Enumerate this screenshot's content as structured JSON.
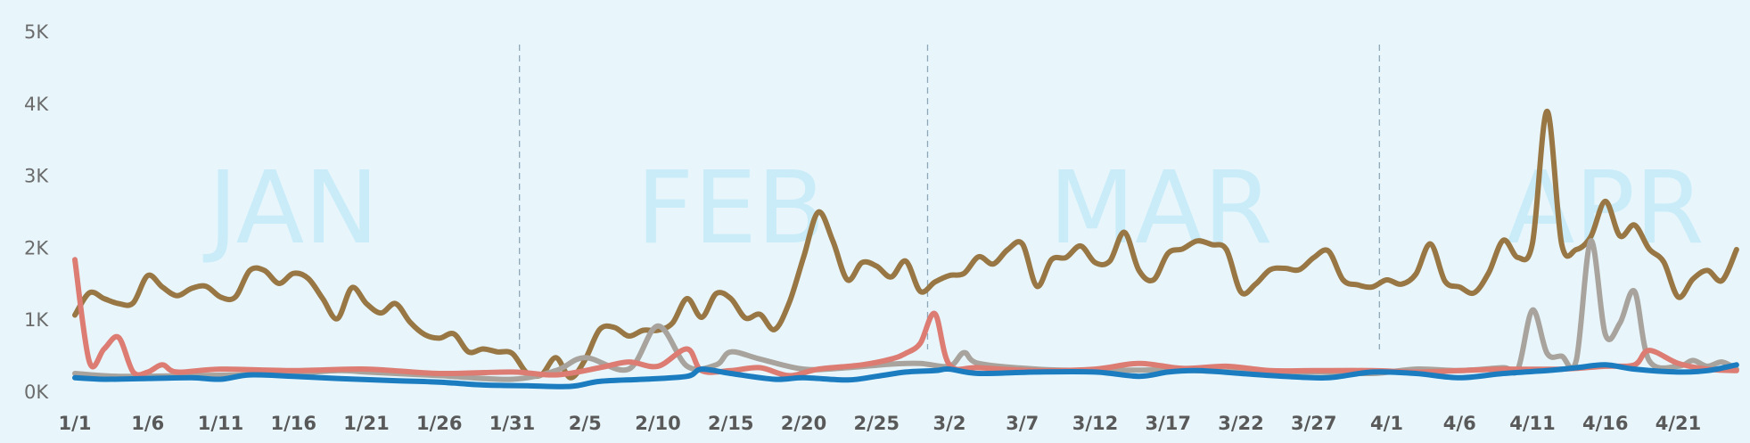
{
  "chart_data": {
    "type": "line",
    "ylim": [
      0,
      5000
    ],
    "y_ticks": [
      {
        "value": 0,
        "label": "0K"
      },
      {
        "value": 1000,
        "label": "1K"
      },
      {
        "value": 2000,
        "label": "2K"
      },
      {
        "value": 3000,
        "label": "3K"
      },
      {
        "value": 4000,
        "label": "4K"
      },
      {
        "value": 5000,
        "label": "5K"
      }
    ],
    "x_ticks": [
      {
        "index": 0,
        "label": "1/1"
      },
      {
        "index": 5,
        "label": "1/6"
      },
      {
        "index": 10,
        "label": "1/11"
      },
      {
        "index": 15,
        "label": "1/16"
      },
      {
        "index": 20,
        "label": "1/21"
      },
      {
        "index": 25,
        "label": "1/26"
      },
      {
        "index": 30,
        "label": "1/31"
      },
      {
        "index": 35,
        "label": "2/5"
      },
      {
        "index": 40,
        "label": "2/10"
      },
      {
        "index": 45,
        "label": "2/15"
      },
      {
        "index": 50,
        "label": "2/20"
      },
      {
        "index": 55,
        "label": "2/25"
      },
      {
        "index": 60,
        "label": "3/2"
      },
      {
        "index": 65,
        "label": "3/7"
      },
      {
        "index": 70,
        "label": "3/12"
      },
      {
        "index": 75,
        "label": "3/17"
      },
      {
        "index": 80,
        "label": "3/22"
      },
      {
        "index": 85,
        "label": "3/27"
      },
      {
        "index": 90,
        "label": "4/1"
      },
      {
        "index": 95,
        "label": "4/6"
      },
      {
        "index": 100,
        "label": "4/11"
      },
      {
        "index": 105,
        "label": "4/16"
      },
      {
        "index": 110,
        "label": "4/21"
      }
    ],
    "month_labels": [
      {
        "label": "JAN",
        "center": 15
      },
      {
        "label": "FEB",
        "center": 45
      },
      {
        "label": "MAR",
        "center": 74.5
      },
      {
        "label": "APR",
        "center": 105
      }
    ],
    "month_separators": [
      30.5,
      58.5,
      89.5
    ],
    "background_color": "#e8f6fc",
    "grid": false,
    "series": [
      {
        "color": "#987744",
        "points": [
          [
            0,
            1070
          ],
          [
            1,
            1380
          ],
          [
            2,
            1300
          ],
          [
            3,
            1230
          ],
          [
            4,
            1240
          ],
          [
            5,
            1620
          ],
          [
            6,
            1460
          ],
          [
            7,
            1340
          ],
          [
            8,
            1440
          ],
          [
            9,
            1470
          ],
          [
            10,
            1320
          ],
          [
            11,
            1320
          ],
          [
            12,
            1690
          ],
          [
            13,
            1690
          ],
          [
            14,
            1510
          ],
          [
            15,
            1650
          ],
          [
            16,
            1580
          ],
          [
            17,
            1300
          ],
          [
            18,
            1020
          ],
          [
            19,
            1450
          ],
          [
            20,
            1230
          ],
          [
            21,
            1100
          ],
          [
            22,
            1230
          ],
          [
            23,
            970
          ],
          [
            24,
            800
          ],
          [
            25,
            750
          ],
          [
            26,
            810
          ],
          [
            27,
            560
          ],
          [
            28,
            600
          ],
          [
            29,
            560
          ],
          [
            30,
            540
          ],
          [
            31,
            270
          ],
          [
            32,
            240
          ],
          [
            33,
            480
          ],
          [
            34,
            200
          ],
          [
            35,
            450
          ],
          [
            36,
            870
          ],
          [
            37,
            900
          ],
          [
            38,
            780
          ],
          [
            39,
            860
          ],
          [
            40,
            860
          ],
          [
            41,
            960
          ],
          [
            42,
            1300
          ],
          [
            43,
            1040
          ],
          [
            44,
            1370
          ],
          [
            45,
            1300
          ],
          [
            46,
            1030
          ],
          [
            47,
            1080
          ],
          [
            48,
            870
          ],
          [
            49,
            1240
          ],
          [
            50,
            1880
          ],
          [
            51,
            2500
          ],
          [
            52,
            2100
          ],
          [
            53,
            1560
          ],
          [
            54,
            1800
          ],
          [
            55,
            1750
          ],
          [
            56,
            1600
          ],
          [
            57,
            1820
          ],
          [
            58,
            1400
          ],
          [
            59,
            1530
          ],
          [
            60,
            1620
          ],
          [
            61,
            1650
          ],
          [
            62,
            1880
          ],
          [
            63,
            1780
          ],
          [
            64,
            1980
          ],
          [
            65,
            2060
          ],
          [
            66,
            1470
          ],
          [
            67,
            1840
          ],
          [
            68,
            1870
          ],
          [
            69,
            2030
          ],
          [
            70,
            1800
          ],
          [
            71,
            1820
          ],
          [
            72,
            2220
          ],
          [
            73,
            1690
          ],
          [
            74,
            1560
          ],
          [
            75,
            1930
          ],
          [
            76,
            1990
          ],
          [
            77,
            2100
          ],
          [
            78,
            2050
          ],
          [
            79,
            1980
          ],
          [
            80,
            1390
          ],
          [
            81,
            1500
          ],
          [
            82,
            1700
          ],
          [
            83,
            1720
          ],
          [
            84,
            1700
          ],
          [
            85,
            1870
          ],
          [
            86,
            1960
          ],
          [
            87,
            1560
          ],
          [
            88,
            1490
          ],
          [
            89,
            1460
          ],
          [
            90,
            1560
          ],
          [
            91,
            1500
          ],
          [
            92,
            1640
          ],
          [
            93,
            2060
          ],
          [
            94,
            1540
          ],
          [
            95,
            1460
          ],
          [
            96,
            1380
          ],
          [
            97,
            1660
          ],
          [
            98,
            2110
          ],
          [
            99,
            1870
          ],
          [
            100,
            2070
          ],
          [
            101,
            3900
          ],
          [
            102,
            2060
          ],
          [
            103,
            1980
          ],
          [
            104,
            2160
          ],
          [
            105,
            2650
          ],
          [
            106,
            2170
          ],
          [
            107,
            2320
          ],
          [
            108,
            1990
          ],
          [
            109,
            1810
          ],
          [
            110,
            1320
          ],
          [
            111,
            1570
          ],
          [
            112,
            1690
          ],
          [
            113,
            1550
          ],
          [
            114,
            1980
          ]
        ]
      },
      {
        "color": "#a8a39c",
        "points": [
          [
            0,
            260
          ],
          [
            3,
            220
          ],
          [
            8,
            230
          ],
          [
            14,
            250
          ],
          [
            18,
            300
          ],
          [
            20,
            280
          ],
          [
            25,
            230
          ],
          [
            30,
            180
          ],
          [
            33,
            300
          ],
          [
            35,
            480
          ],
          [
            38,
            320
          ],
          [
            40,
            920
          ],
          [
            42,
            360
          ],
          [
            44,
            380
          ],
          [
            45,
            560
          ],
          [
            47,
            460
          ],
          [
            50,
            320
          ],
          [
            53,
            340
          ],
          [
            56,
            390
          ],
          [
            58,
            400
          ],
          [
            60,
            360
          ],
          [
            61,
            550
          ],
          [
            62,
            400
          ],
          [
            66,
            320
          ],
          [
            70,
            300
          ],
          [
            75,
            310
          ],
          [
            80,
            280
          ],
          [
            85,
            280
          ],
          [
            89,
            260
          ],
          [
            92,
            320
          ],
          [
            95,
            300
          ],
          [
            98,
            340
          ],
          [
            99,
            320
          ],
          [
            100,
            1140
          ],
          [
            101,
            540
          ],
          [
            102,
            500
          ],
          [
            103,
            440
          ],
          [
            104,
            2100
          ],
          [
            105,
            800
          ],
          [
            106,
            960
          ],
          [
            107,
            1400
          ],
          [
            108,
            440
          ],
          [
            110,
            360
          ],
          [
            111,
            440
          ],
          [
            112,
            360
          ],
          [
            113,
            420
          ],
          [
            114,
            320
          ]
        ]
      },
      {
        "color": "#dc7c73",
        "points": [
          [
            0,
            1840
          ],
          [
            1,
            420
          ],
          [
            2,
            600
          ],
          [
            3,
            760
          ],
          [
            4,
            280
          ],
          [
            5,
            280
          ],
          [
            6,
            380
          ],
          [
            7,
            280
          ],
          [
            10,
            320
          ],
          [
            15,
            300
          ],
          [
            20,
            320
          ],
          [
            25,
            260
          ],
          [
            30,
            280
          ],
          [
            33,
            240
          ],
          [
            36,
            340
          ],
          [
            38,
            420
          ],
          [
            40,
            360
          ],
          [
            42,
            600
          ],
          [
            43,
            300
          ],
          [
            45,
            300
          ],
          [
            47,
            340
          ],
          [
            49,
            230
          ],
          [
            51,
            320
          ],
          [
            54,
            380
          ],
          [
            56,
            460
          ],
          [
            57,
            540
          ],
          [
            58,
            680
          ],
          [
            59,
            1090
          ],
          [
            60,
            380
          ],
          [
            62,
            340
          ],
          [
            66,
            300
          ],
          [
            70,
            320
          ],
          [
            73,
            400
          ],
          [
            76,
            330
          ],
          [
            79,
            360
          ],
          [
            82,
            300
          ],
          [
            85,
            300
          ],
          [
            89,
            300
          ],
          [
            92,
            280
          ],
          [
            95,
            300
          ],
          [
            98,
            320
          ],
          [
            102,
            320
          ],
          [
            105,
            360
          ],
          [
            107,
            380
          ],
          [
            108,
            580
          ],
          [
            110,
            400
          ],
          [
            112,
            320
          ],
          [
            114,
            300
          ]
        ]
      },
      {
        "color": "#1b7cc0",
        "points": [
          [
            0,
            200
          ],
          [
            2,
            180
          ],
          [
            5,
            190
          ],
          [
            8,
            200
          ],
          [
            10,
            180
          ],
          [
            12,
            240
          ],
          [
            15,
            220
          ],
          [
            18,
            190
          ],
          [
            22,
            160
          ],
          [
            25,
            140
          ],
          [
            28,
            100
          ],
          [
            31,
            90
          ],
          [
            34,
            80
          ],
          [
            36,
            150
          ],
          [
            39,
            180
          ],
          [
            42,
            220
          ],
          [
            43,
            320
          ],
          [
            45,
            260
          ],
          [
            48,
            180
          ],
          [
            50,
            200
          ],
          [
            53,
            170
          ],
          [
            55,
            220
          ],
          [
            57,
            280
          ],
          [
            59,
            300
          ],
          [
            60,
            320
          ],
          [
            62,
            260
          ],
          [
            66,
            280
          ],
          [
            70,
            280
          ],
          [
            73,
            220
          ],
          [
            75,
            280
          ],
          [
            77,
            300
          ],
          [
            80,
            260
          ],
          [
            83,
            220
          ],
          [
            86,
            200
          ],
          [
            89,
            280
          ],
          [
            92,
            260
          ],
          [
            95,
            200
          ],
          [
            98,
            260
          ],
          [
            101,
            300
          ],
          [
            103,
            340
          ],
          [
            105,
            380
          ],
          [
            107,
            320
          ],
          [
            110,
            280
          ],
          [
            112,
            300
          ],
          [
            114,
            380
          ]
        ]
      }
    ]
  }
}
